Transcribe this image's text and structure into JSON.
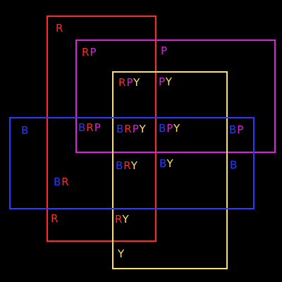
{
  "colors": {
    "R": "#ff2a2a",
    "P": "#e020e0",
    "Y": "#ffe060",
    "B": "#2a3aff",
    "background": "#000000"
  },
  "sets": [
    {
      "key": "R",
      "color": "#ff2a2a"
    },
    {
      "key": "P",
      "color": "#e020e0"
    },
    {
      "key": "Y",
      "color": "#ffe060"
    },
    {
      "key": "B",
      "color": "#2a3aff"
    }
  ],
  "regions": [
    {
      "id": "r",
      "letters": [
        "R"
      ]
    },
    {
      "id": "rp",
      "letters": [
        "R",
        "P"
      ]
    },
    {
      "id": "p",
      "letters": [
        "P"
      ]
    },
    {
      "id": "rpy",
      "letters": [
        "R",
        "P",
        "Y"
      ]
    },
    {
      "id": "py",
      "letters": [
        "P",
        "Y"
      ]
    },
    {
      "id": "b",
      "letters": [
        "B"
      ]
    },
    {
      "id": "brp",
      "letters": [
        "B",
        "R",
        "P"
      ]
    },
    {
      "id": "brpy",
      "letters": [
        "B",
        "R",
        "P",
        "Y"
      ]
    },
    {
      "id": "bpy",
      "letters": [
        "B",
        "P",
        "Y"
      ]
    },
    {
      "id": "bp",
      "letters": [
        "B",
        "P"
      ]
    },
    {
      "id": "bry",
      "letters": [
        "B",
        "R",
        "Y"
      ]
    },
    {
      "id": "by",
      "letters": [
        "B",
        "Y"
      ]
    },
    {
      "id": "b2",
      "letters": [
        "B"
      ]
    },
    {
      "id": "br",
      "letters": [
        "B",
        "R"
      ]
    },
    {
      "id": "r2",
      "letters": [
        "R"
      ]
    },
    {
      "id": "ry",
      "letters": [
        "R",
        "Y"
      ]
    },
    {
      "id": "y",
      "letters": [
        "Y"
      ]
    }
  ]
}
